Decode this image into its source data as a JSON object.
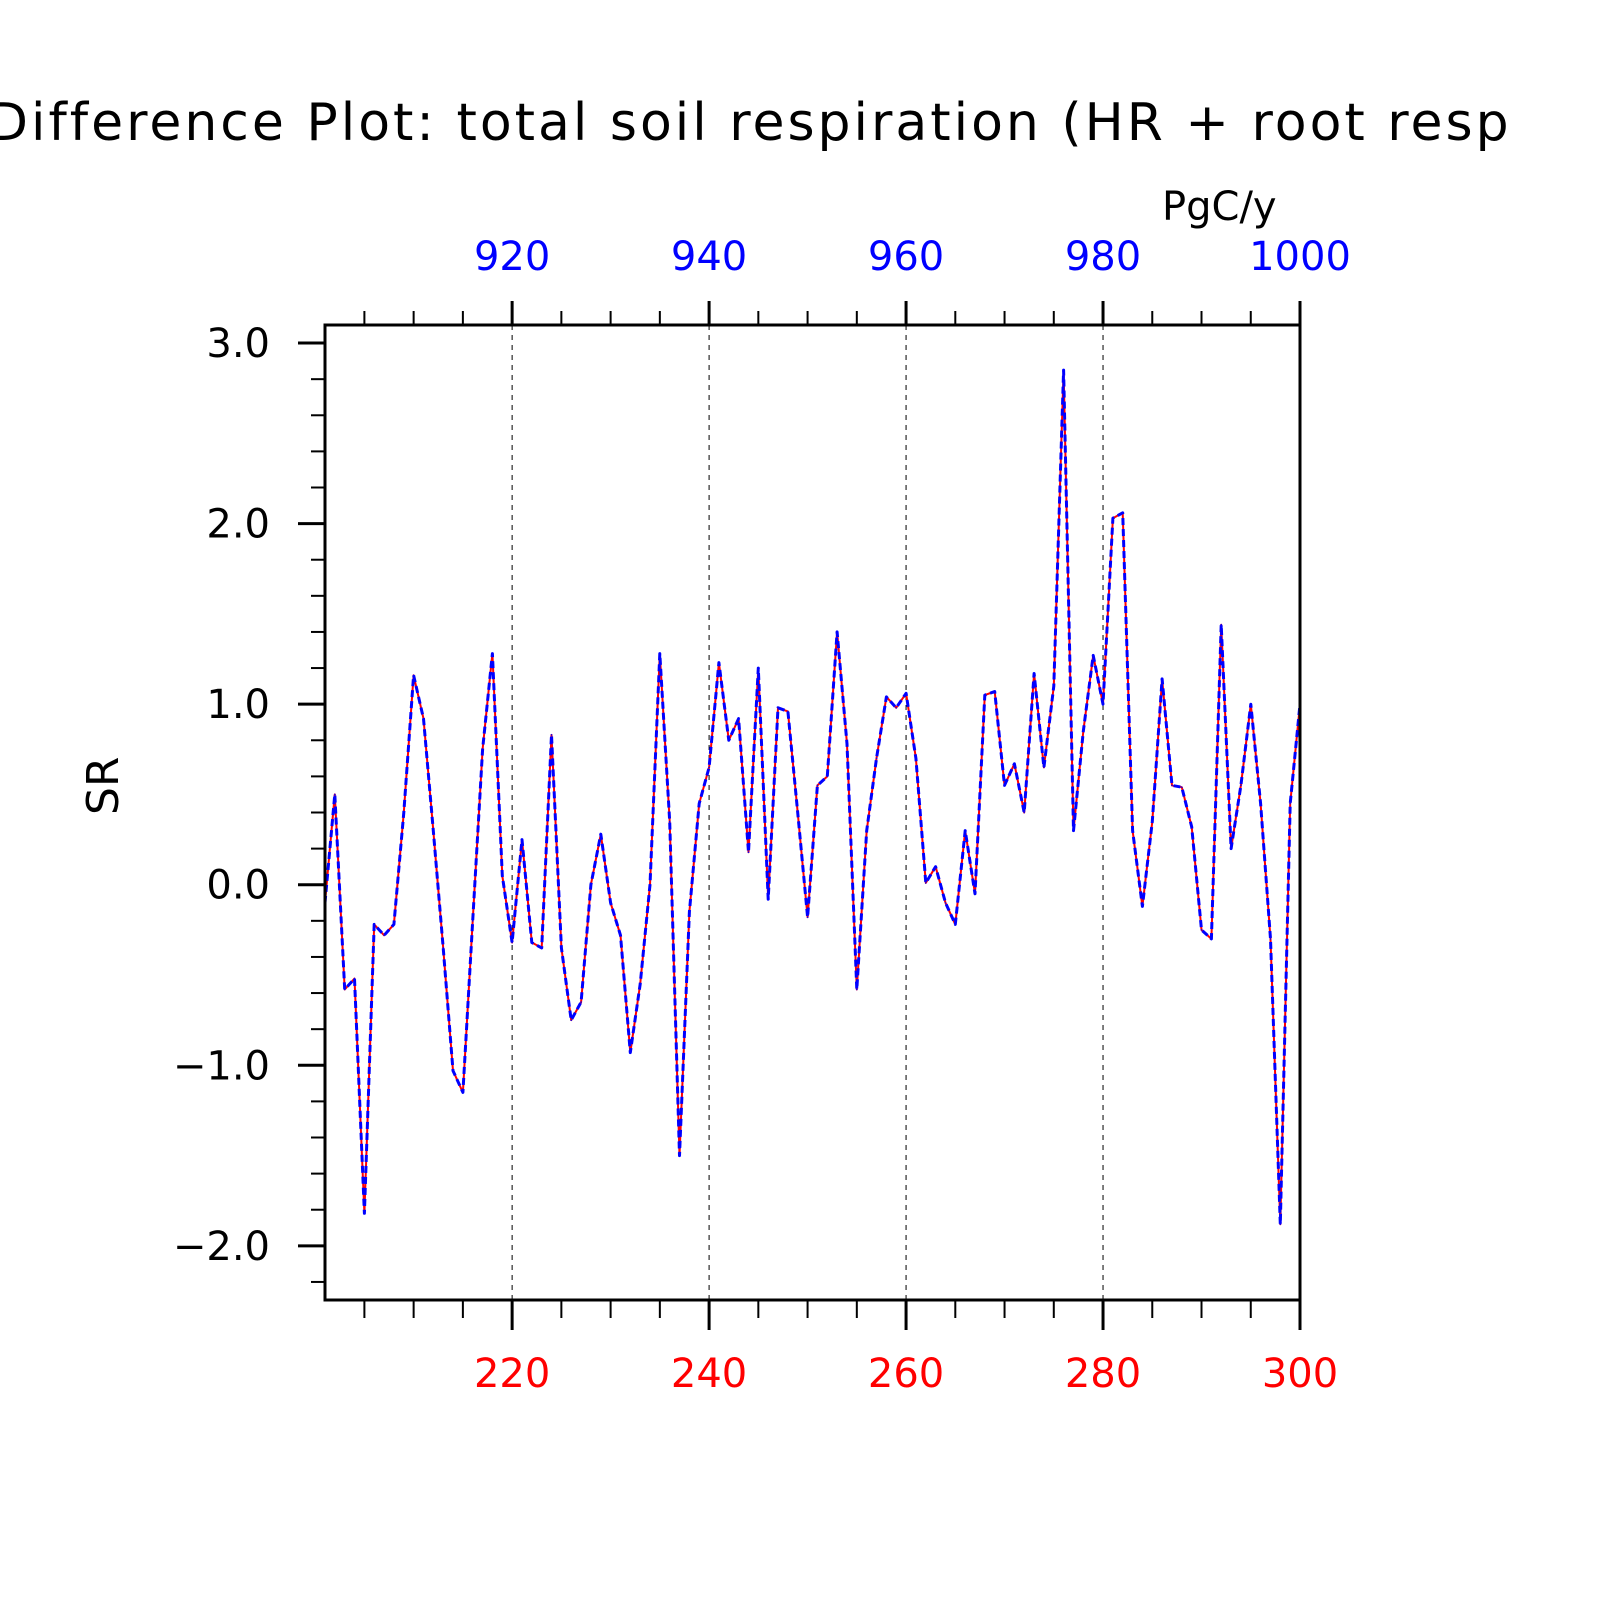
{
  "chart_data": {
    "type": "line",
    "title": "Difference Plot: total soil respiration (HR + root resp",
    "units": "PgC/y",
    "ylabel": "SR",
    "xlabel": "",
    "x_range_bottom": [
      201,
      300
    ],
    "x_range_top": [
      901,
      1000
    ],
    "ylim": [
      -2.3,
      3.1
    ],
    "bottom_ticks": [
      "220",
      "240",
      "260",
      "280",
      "300"
    ],
    "top_ticks": [
      "920",
      "940",
      "960",
      "980",
      "1000"
    ],
    "y_ticks": [
      "3.0",
      "2.0",
      "1.0",
      "0.0",
      "−1.0",
      "−2.0"
    ],
    "y_tick_values": [
      3.0,
      2.0,
      1.0,
      0.0,
      -1.0,
      -2.0
    ],
    "grid": "dashed vertical lines at major x ticks",
    "series": [
      {
        "color": "#ff0000",
        "dash": "solid",
        "values": [
          -0.1,
          0.5,
          -0.58,
          -0.52,
          -1.82,
          -0.22,
          -0.28,
          -0.22,
          0.4,
          1.16,
          0.92,
          0.3,
          -0.35,
          -1.03,
          -1.15,
          -0.2,
          0.75,
          1.28,
          0.05,
          -0.32,
          0.25,
          -0.32,
          -0.35,
          0.83,
          -0.35,
          -0.75,
          -0.65,
          0.0,
          0.28,
          -0.1,
          -0.28,
          -0.93,
          -0.55,
          0.0,
          1.28,
          0.35,
          -1.5,
          -0.15,
          0.45,
          0.65,
          1.23,
          0.8,
          0.92,
          0.18,
          1.2,
          -0.08,
          0.98,
          0.96,
          0.4,
          -0.18,
          0.55,
          0.6,
          1.4,
          0.78,
          -0.58,
          0.3,
          0.7,
          1.04,
          0.98,
          1.06,
          0.7,
          0.01,
          0.1,
          -0.1,
          -0.22,
          0.3,
          -0.05,
          1.05,
          1.07,
          0.55,
          0.67,
          0.4,
          1.17,
          0.65,
          1.1,
          2.85,
          0.3,
          0.85,
          1.27,
          1.0,
          2.03,
          2.06,
          0.3,
          -0.12,
          0.35,
          1.14,
          0.55,
          0.54,
          0.32,
          -0.25,
          -0.3,
          1.44,
          0.2,
          0.55,
          1.0,
          0.45,
          -0.3,
          -1.88,
          0.45,
          1.0
        ]
      },
      {
        "color": "#0000ff",
        "dash": "dashed",
        "values": [
          -0.1,
          0.5,
          -0.58,
          -0.52,
          -1.82,
          -0.22,
          -0.28,
          -0.22,
          0.4,
          1.16,
          0.92,
          0.3,
          -0.35,
          -1.03,
          -1.15,
          -0.2,
          0.75,
          1.28,
          0.05,
          -0.32,
          0.25,
          -0.32,
          -0.35,
          0.83,
          -0.35,
          -0.75,
          -0.65,
          0.0,
          0.28,
          -0.1,
          -0.28,
          -0.93,
          -0.55,
          0.0,
          1.28,
          0.35,
          -1.5,
          -0.15,
          0.45,
          0.65,
          1.23,
          0.8,
          0.92,
          0.18,
          1.2,
          -0.08,
          0.98,
          0.96,
          0.4,
          -0.18,
          0.55,
          0.6,
          1.4,
          0.78,
          -0.58,
          0.3,
          0.7,
          1.04,
          0.98,
          1.06,
          0.7,
          0.01,
          0.1,
          -0.1,
          -0.22,
          0.3,
          -0.05,
          1.05,
          1.07,
          0.55,
          0.67,
          0.4,
          1.17,
          0.65,
          1.1,
          2.85,
          0.3,
          0.85,
          1.27,
          1.0,
          2.03,
          2.06,
          0.3,
          -0.12,
          0.35,
          1.14,
          0.55,
          0.54,
          0.32,
          -0.25,
          -0.3,
          1.44,
          0.2,
          0.55,
          1.0,
          0.45,
          -0.3,
          -1.88,
          0.45,
          1.0
        ]
      }
    ],
    "colors": {
      "bottom_axis": "#ff0000",
      "top_axis": "#0000ff",
      "frame": "#000000"
    }
  }
}
